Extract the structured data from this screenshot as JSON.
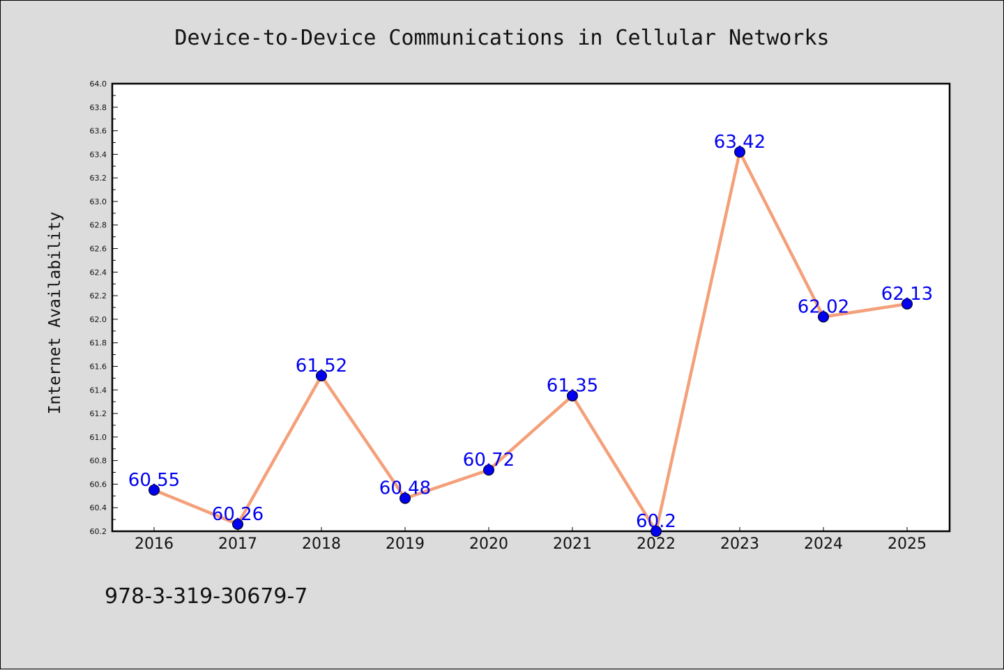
{
  "chart_data": {
    "type": "line",
    "title": "Device-to-Device Communications in Cellular Networks",
    "xlabel": "",
    "ylabel": "Internet Availability",
    "categories": [
      "2016",
      "2017",
      "2018",
      "2019",
      "2020",
      "2021",
      "2022",
      "2023",
      "2024",
      "2025"
    ],
    "series": [
      {
        "values": [
          60.55,
          60.26,
          61.52,
          60.48,
          60.72,
          61.35,
          60.2,
          63.42,
          62.02,
          62.13
        ],
        "data_labels": [
          "60.55",
          "60.26",
          "61.52",
          "60.48",
          "60.72",
          "61.35",
          "60.2",
          "63.42",
          "62.02",
          "62.13"
        ]
      }
    ],
    "ylim": [
      60.2,
      64.0
    ],
    "yticks": [
      "60.2",
      "60.4",
      "60.6",
      "60.8",
      "61.0",
      "61.2",
      "61.4",
      "61.6",
      "61.8",
      "62.0",
      "62.2",
      "62.4",
      "62.6",
      "62.8",
      "63.0",
      "63.2",
      "63.4",
      "63.6",
      "63.8",
      "64.0"
    ],
    "grid": false,
    "legend": "none",
    "colors": {
      "line": "#f4a07a",
      "marker": "#0000ee",
      "data_label": "#0000ee",
      "background": "#dcdcdc",
      "plot_background": "#ffffff"
    }
  },
  "footer": {
    "isbn": "978-3-319-30679-7"
  }
}
